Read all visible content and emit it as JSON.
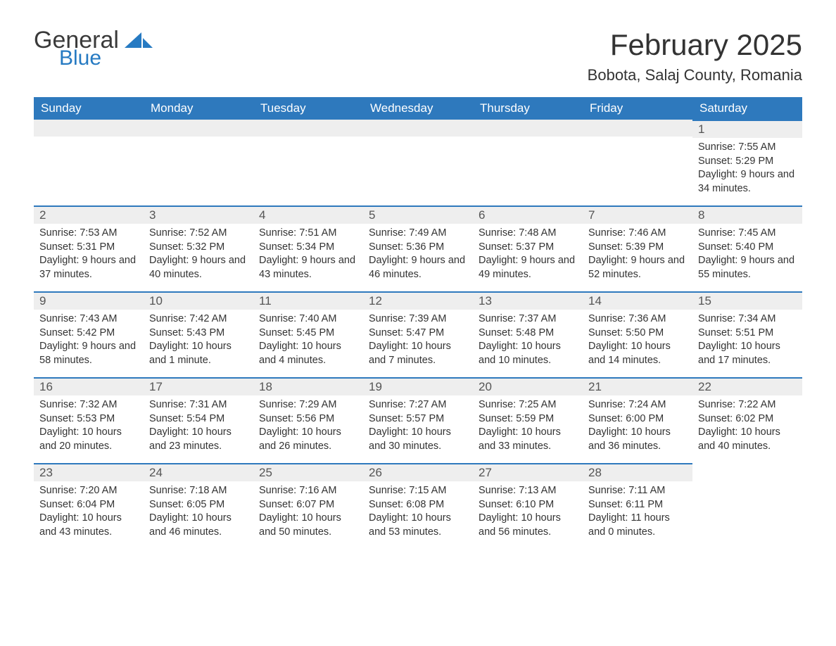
{
  "brand": {
    "word1": "General",
    "word2": "Blue",
    "icon_color": "#267ac2"
  },
  "title": "February 2025",
  "location": "Bobota, Salaj County, Romania",
  "colors": {
    "header_bg": "#2e79bd",
    "header_text": "#ffffff",
    "daybar_bg": "#eeeeee",
    "daybar_border": "#2e79bd",
    "body_text": "#333333",
    "brand_gray": "#3a3a3a",
    "brand_blue": "#267ac2",
    "page_bg": "#ffffff"
  },
  "weekdays": [
    "Sunday",
    "Monday",
    "Tuesday",
    "Wednesday",
    "Thursday",
    "Friday",
    "Saturday"
  ],
  "first_weekday_index": 6,
  "days": [
    {
      "n": 1,
      "sunrise": "7:55 AM",
      "sunset": "5:29 PM",
      "dl": "9 hours and 34 minutes."
    },
    {
      "n": 2,
      "sunrise": "7:53 AM",
      "sunset": "5:31 PM",
      "dl": "9 hours and 37 minutes."
    },
    {
      "n": 3,
      "sunrise": "7:52 AM",
      "sunset": "5:32 PM",
      "dl": "9 hours and 40 minutes."
    },
    {
      "n": 4,
      "sunrise": "7:51 AM",
      "sunset": "5:34 PM",
      "dl": "9 hours and 43 minutes."
    },
    {
      "n": 5,
      "sunrise": "7:49 AM",
      "sunset": "5:36 PM",
      "dl": "9 hours and 46 minutes."
    },
    {
      "n": 6,
      "sunrise": "7:48 AM",
      "sunset": "5:37 PM",
      "dl": "9 hours and 49 minutes."
    },
    {
      "n": 7,
      "sunrise": "7:46 AM",
      "sunset": "5:39 PM",
      "dl": "9 hours and 52 minutes."
    },
    {
      "n": 8,
      "sunrise": "7:45 AM",
      "sunset": "5:40 PM",
      "dl": "9 hours and 55 minutes."
    },
    {
      "n": 9,
      "sunrise": "7:43 AM",
      "sunset": "5:42 PM",
      "dl": "9 hours and 58 minutes."
    },
    {
      "n": 10,
      "sunrise": "7:42 AM",
      "sunset": "5:43 PM",
      "dl": "10 hours and 1 minute."
    },
    {
      "n": 11,
      "sunrise": "7:40 AM",
      "sunset": "5:45 PM",
      "dl": "10 hours and 4 minutes."
    },
    {
      "n": 12,
      "sunrise": "7:39 AM",
      "sunset": "5:47 PM",
      "dl": "10 hours and 7 minutes."
    },
    {
      "n": 13,
      "sunrise": "7:37 AM",
      "sunset": "5:48 PM",
      "dl": "10 hours and 10 minutes."
    },
    {
      "n": 14,
      "sunrise": "7:36 AM",
      "sunset": "5:50 PM",
      "dl": "10 hours and 14 minutes."
    },
    {
      "n": 15,
      "sunrise": "7:34 AM",
      "sunset": "5:51 PM",
      "dl": "10 hours and 17 minutes."
    },
    {
      "n": 16,
      "sunrise": "7:32 AM",
      "sunset": "5:53 PM",
      "dl": "10 hours and 20 minutes."
    },
    {
      "n": 17,
      "sunrise": "7:31 AM",
      "sunset": "5:54 PM",
      "dl": "10 hours and 23 minutes."
    },
    {
      "n": 18,
      "sunrise": "7:29 AM",
      "sunset": "5:56 PM",
      "dl": "10 hours and 26 minutes."
    },
    {
      "n": 19,
      "sunrise": "7:27 AM",
      "sunset": "5:57 PM",
      "dl": "10 hours and 30 minutes."
    },
    {
      "n": 20,
      "sunrise": "7:25 AM",
      "sunset": "5:59 PM",
      "dl": "10 hours and 33 minutes."
    },
    {
      "n": 21,
      "sunrise": "7:24 AM",
      "sunset": "6:00 PM",
      "dl": "10 hours and 36 minutes."
    },
    {
      "n": 22,
      "sunrise": "7:22 AM",
      "sunset": "6:02 PM",
      "dl": "10 hours and 40 minutes."
    },
    {
      "n": 23,
      "sunrise": "7:20 AM",
      "sunset": "6:04 PM",
      "dl": "10 hours and 43 minutes."
    },
    {
      "n": 24,
      "sunrise": "7:18 AM",
      "sunset": "6:05 PM",
      "dl": "10 hours and 46 minutes."
    },
    {
      "n": 25,
      "sunrise": "7:16 AM",
      "sunset": "6:07 PM",
      "dl": "10 hours and 50 minutes."
    },
    {
      "n": 26,
      "sunrise": "7:15 AM",
      "sunset": "6:08 PM",
      "dl": "10 hours and 53 minutes."
    },
    {
      "n": 27,
      "sunrise": "7:13 AM",
      "sunset": "6:10 PM",
      "dl": "10 hours and 56 minutes."
    },
    {
      "n": 28,
      "sunrise": "7:11 AM",
      "sunset": "6:11 PM",
      "dl": "11 hours and 0 minutes."
    }
  ],
  "labels": {
    "sr": "Sunrise: ",
    "ss": "Sunset: ",
    "dl": "Daylight: "
  }
}
